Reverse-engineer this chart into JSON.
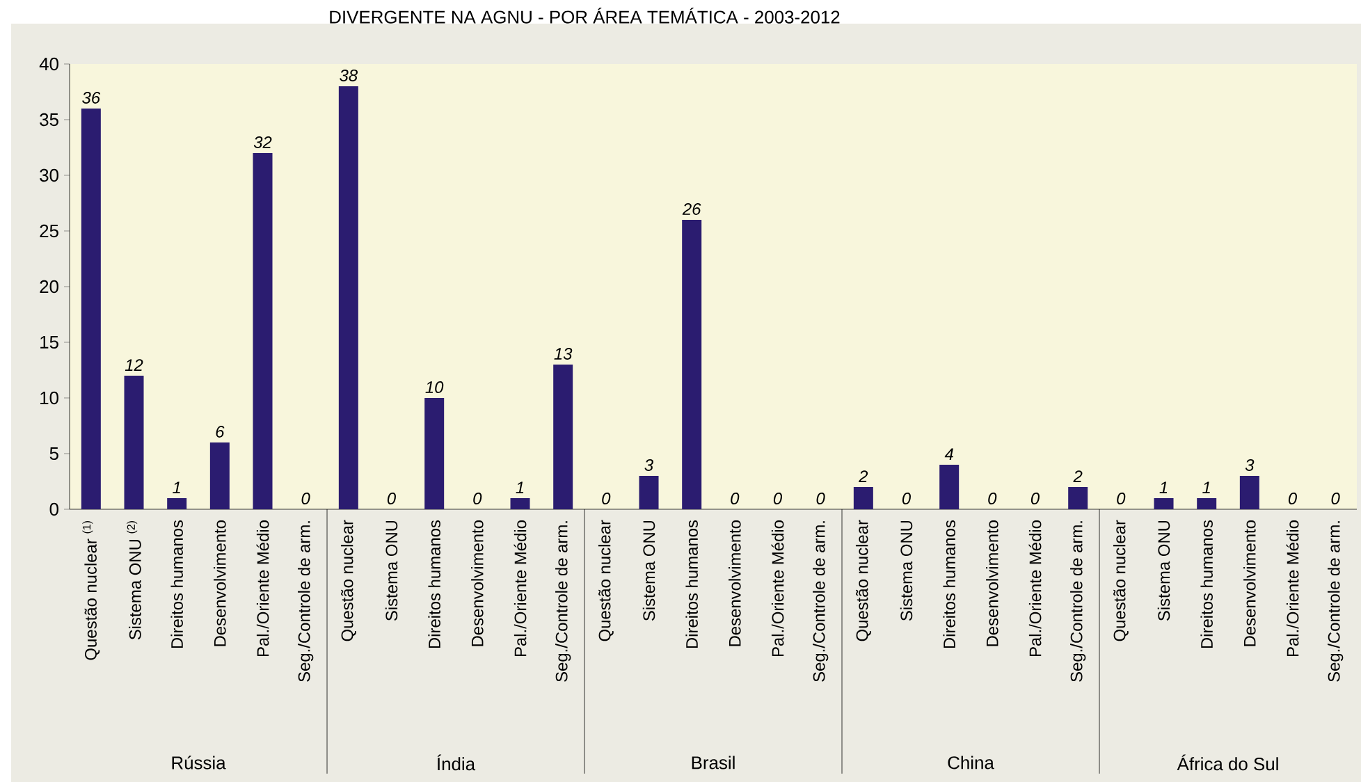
{
  "chart_data": {
    "type": "bar",
    "title": "DIVERGENTE NA AGNU - POR ÁREA TEMÁTICA - 2003-2012",
    "categories": [
      "Questão nuclear $^{(1)}$",
      "Sistema ONU $^{(2)}$",
      "Direitos humanos",
      "Desenvolvimento",
      "Pal./Oriente Médio",
      "Seg./Controle de arm.",
      "Questão nuclear",
      "Sistema ONU",
      "Direitos humanos",
      "Desenvolvimento",
      "Pal./Oriente Médio",
      "Seg./Controle de arm.",
      "Questão nuclear",
      "Sistema ONU",
      "Direitos humanos",
      "Desenvolvimento",
      "Pal./Oriente Médio",
      "Seg./Controle de arm.",
      "Questão nuclear",
      "Sistema ONU",
      "Direitos humanos",
      "Desenvolvimento",
      "Pal./Oriente Médio",
      "Seg./Controle de arm.",
      "Questão nuclear",
      "Sistema ONU",
      "Direitos humanos",
      "Desenvolvimento",
      "Pal./Oriente Médio",
      "Seg./Controle de arm."
    ],
    "values": [
      36,
      12,
      1,
      6,
      32,
      0,
      38,
      0,
      10,
      0,
      1,
      13,
      0,
      3,
      26,
      0,
      0,
      0,
      2,
      0,
      4,
      0,
      0,
      2,
      0,
      1,
      1,
      3,
      0,
      0
    ],
    "color": "#2b1c70",
    "ylim": [
      0,
      40
    ],
    "yticks": [
      0,
      5,
      10,
      15,
      20,
      25,
      30,
      35,
      40
    ],
    "data_labels": true,
    "grid": false,
    "annotations": [
      "Rússia",
      "Índia",
      "Brasil",
      "China",
      "África do Sul"
    ]
  }
}
